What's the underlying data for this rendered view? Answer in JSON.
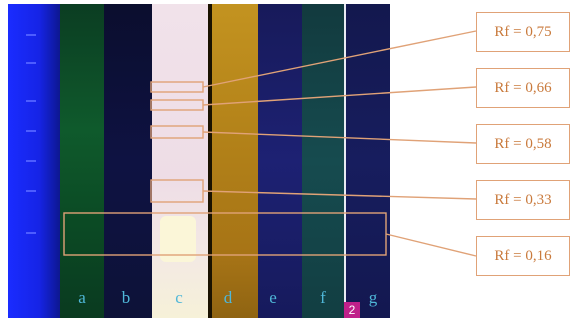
{
  "lanes": [
    "a",
    "b",
    "c",
    "d",
    "e",
    "f",
    "g"
  ],
  "rf_labels": [
    "Rf = 0,75",
    "Rf = 0,66",
    "Rf = 0,58",
    "Rf = 0,33",
    "Rf = 0,16"
  ],
  "badge": "2",
  "colors": {
    "annotation": "#e0a277",
    "label_text": "#c97a3c",
    "lane_label": "#4fb7d8"
  }
}
